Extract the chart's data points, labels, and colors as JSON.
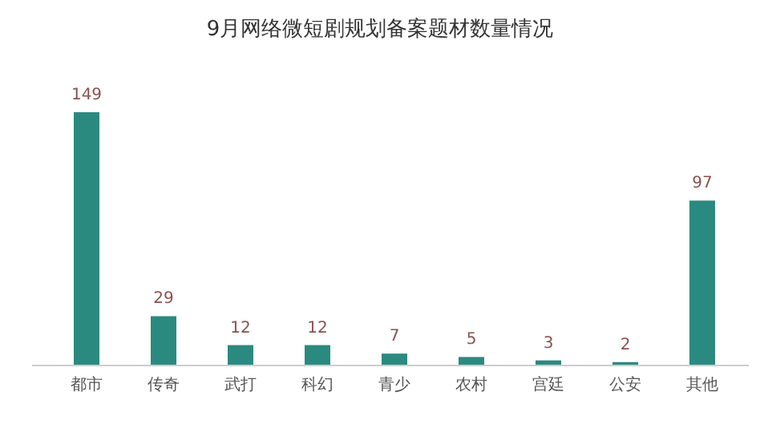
{
  "chart_data": {
    "type": "bar",
    "title": "9月网络微短剧规划备案题材数量情况",
    "categories": [
      "都市",
      "传奇",
      "武打",
      "科幻",
      "青少",
      "农村",
      "宫廷",
      "公安",
      "其他"
    ],
    "values": [
      149,
      29,
      12,
      12,
      7,
      5,
      3,
      2,
      97
    ],
    "color": "#2b8a80",
    "data_labels": true
  }
}
